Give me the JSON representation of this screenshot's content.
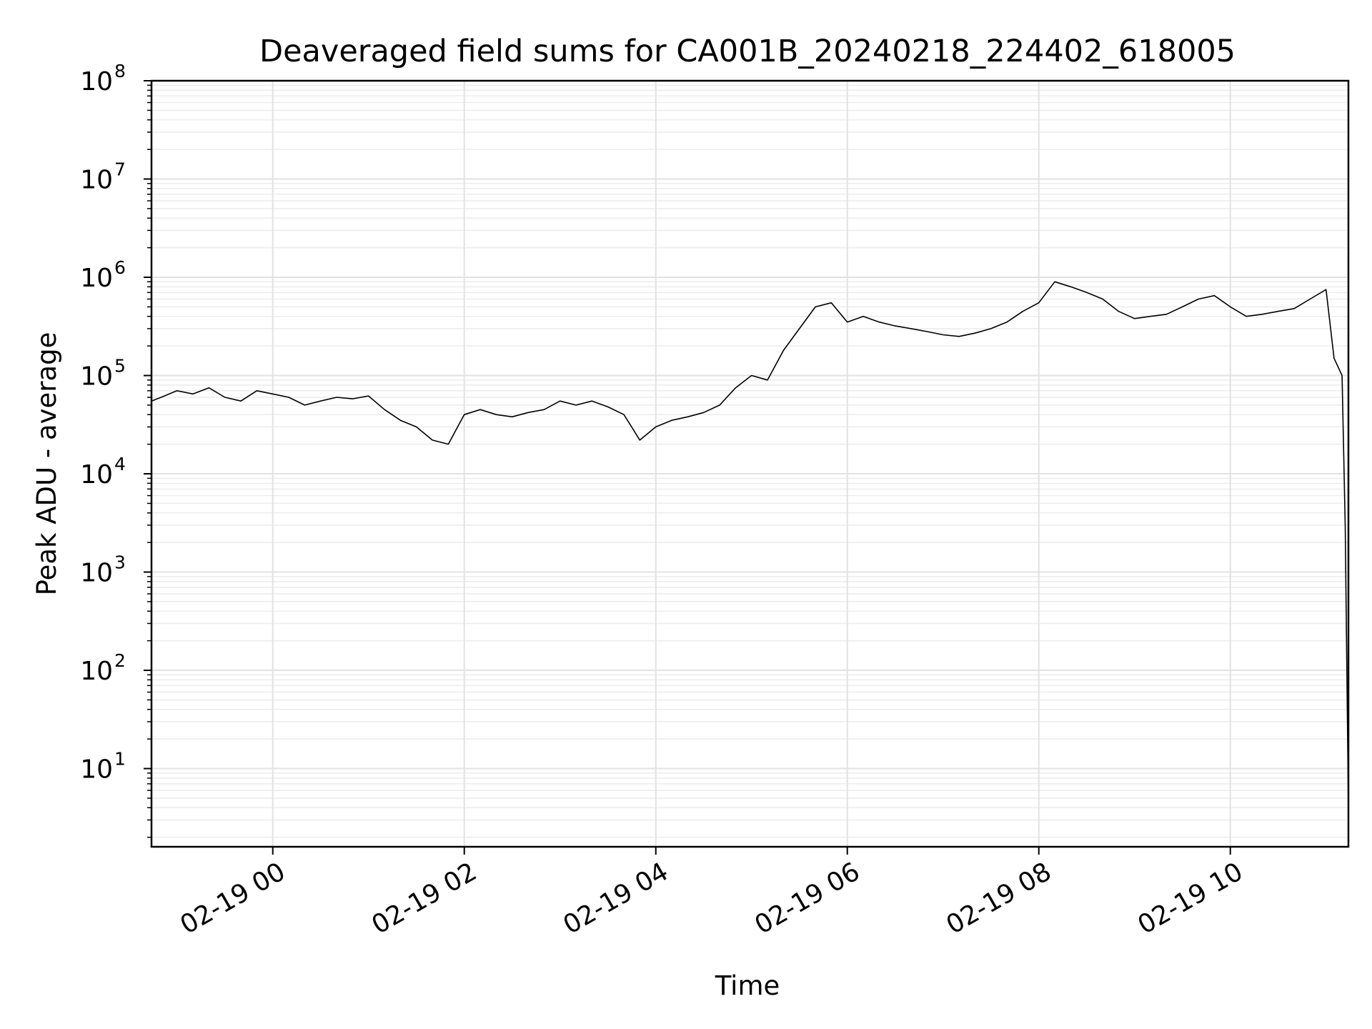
{
  "chart_data": {
    "type": "line",
    "title": "Deaveraged field sums for CA001B_20240218_224402_618005",
    "xlabel": "Time",
    "ylabel": "Peak ADU - average",
    "yscale": "log",
    "ylim": [
      1.6,
      100000000
    ],
    "xlim": [
      "02-18 22:44",
      "02-19 11:14"
    ],
    "y_ticks": [
      {
        "base": "10",
        "exp": "1",
        "value": 10
      },
      {
        "base": "10",
        "exp": "2",
        "value": 100
      },
      {
        "base": "10",
        "exp": "3",
        "value": 1000
      },
      {
        "base": "10",
        "exp": "4",
        "value": 10000
      },
      {
        "base": "10",
        "exp": "5",
        "value": 100000
      },
      {
        "base": "10",
        "exp": "6",
        "value": 1000000
      },
      {
        "base": "10",
        "exp": "7",
        "value": 10000000
      },
      {
        "base": "10",
        "exp": "8",
        "value": 100000000
      }
    ],
    "x_ticks": [
      {
        "label": "02-19 00",
        "time": "02-19 00:00"
      },
      {
        "label": "02-19 02",
        "time": "02-19 02:00"
      },
      {
        "label": "02-19 04",
        "time": "02-19 04:00"
      },
      {
        "label": "02-19 06",
        "time": "02-19 06:00"
      },
      {
        "label": "02-19 08",
        "time": "02-19 08:00"
      },
      {
        "label": "02-19 10",
        "time": "02-19 10:00"
      }
    ],
    "grid": true,
    "line_color": "#000000",
    "series": [
      {
        "x": [
          "02-18 22:44",
          "02-18 22:50",
          "02-18 23:00",
          "02-18 23:10",
          "02-18 23:20",
          "02-18 23:30",
          "02-18 23:40",
          "02-18 23:50",
          "02-19 00:00",
          "02-19 00:10",
          "02-19 00:20",
          "02-19 00:30",
          "02-19 00:40",
          "02-19 00:50",
          "02-19 01:00",
          "02-19 01:10",
          "02-19 01:20",
          "02-19 01:30",
          "02-19 01:40",
          "02-19 01:50",
          "02-19 02:00",
          "02-19 02:10",
          "02-19 02:20",
          "02-19 02:30",
          "02-19 02:40",
          "02-19 02:50",
          "02-19 03:00",
          "02-19 03:10",
          "02-19 03:20",
          "02-19 03:30",
          "02-19 03:40",
          "02-19 03:50",
          "02-19 04:00",
          "02-19 04:10",
          "02-19 04:20",
          "02-19 04:30",
          "02-19 04:40",
          "02-19 04:50",
          "02-19 05:00",
          "02-19 05:10",
          "02-19 05:20",
          "02-19 05:30",
          "02-19 05:40",
          "02-19 05:50",
          "02-19 06:00",
          "02-19 06:10",
          "02-19 06:20",
          "02-19 06:30",
          "02-19 06:40",
          "02-19 06:50",
          "02-19 07:00",
          "02-19 07:10",
          "02-19 07:20",
          "02-19 07:30",
          "02-19 07:40",
          "02-19 07:50",
          "02-19 08:00",
          "02-19 08:10",
          "02-19 08:20",
          "02-19 08:30",
          "02-19 08:40",
          "02-19 08:50",
          "02-19 09:00",
          "02-19 09:10",
          "02-19 09:20",
          "02-19 09:30",
          "02-19 09:40",
          "02-19 09:50",
          "02-19 10:00",
          "02-19 10:10",
          "02-19 10:20",
          "02-19 10:30",
          "02-19 10:40",
          "02-19 10:50",
          "02-19 11:00",
          "02-19 11:05",
          "02-19 11:10",
          "02-19 11:12",
          "02-19 11:14"
        ],
        "y": [
          55000,
          60000,
          70000,
          65000,
          75000,
          60000,
          55000,
          70000,
          65000,
          60000,
          50000,
          55000,
          60000,
          58000,
          62000,
          45000,
          35000,
          30000,
          22000,
          20000,
          40000,
          45000,
          40000,
          38000,
          42000,
          45000,
          55000,
          50000,
          55000,
          48000,
          40000,
          22000,
          30000,
          35000,
          38000,
          42000,
          50000,
          75000,
          100000,
          90000,
          180000,
          300000,
          500000,
          550000,
          350000,
          400000,
          350000,
          320000,
          300000,
          280000,
          260000,
          250000,
          270000,
          300000,
          350000,
          450000,
          550000,
          900000,
          800000,
          700000,
          600000,
          450000,
          380000,
          400000,
          420000,
          500000,
          600000,
          650000,
          500000,
          400000,
          420000,
          450000,
          480000,
          600000,
          750000,
          150000,
          100000,
          3000,
          4
        ]
      }
    ]
  }
}
